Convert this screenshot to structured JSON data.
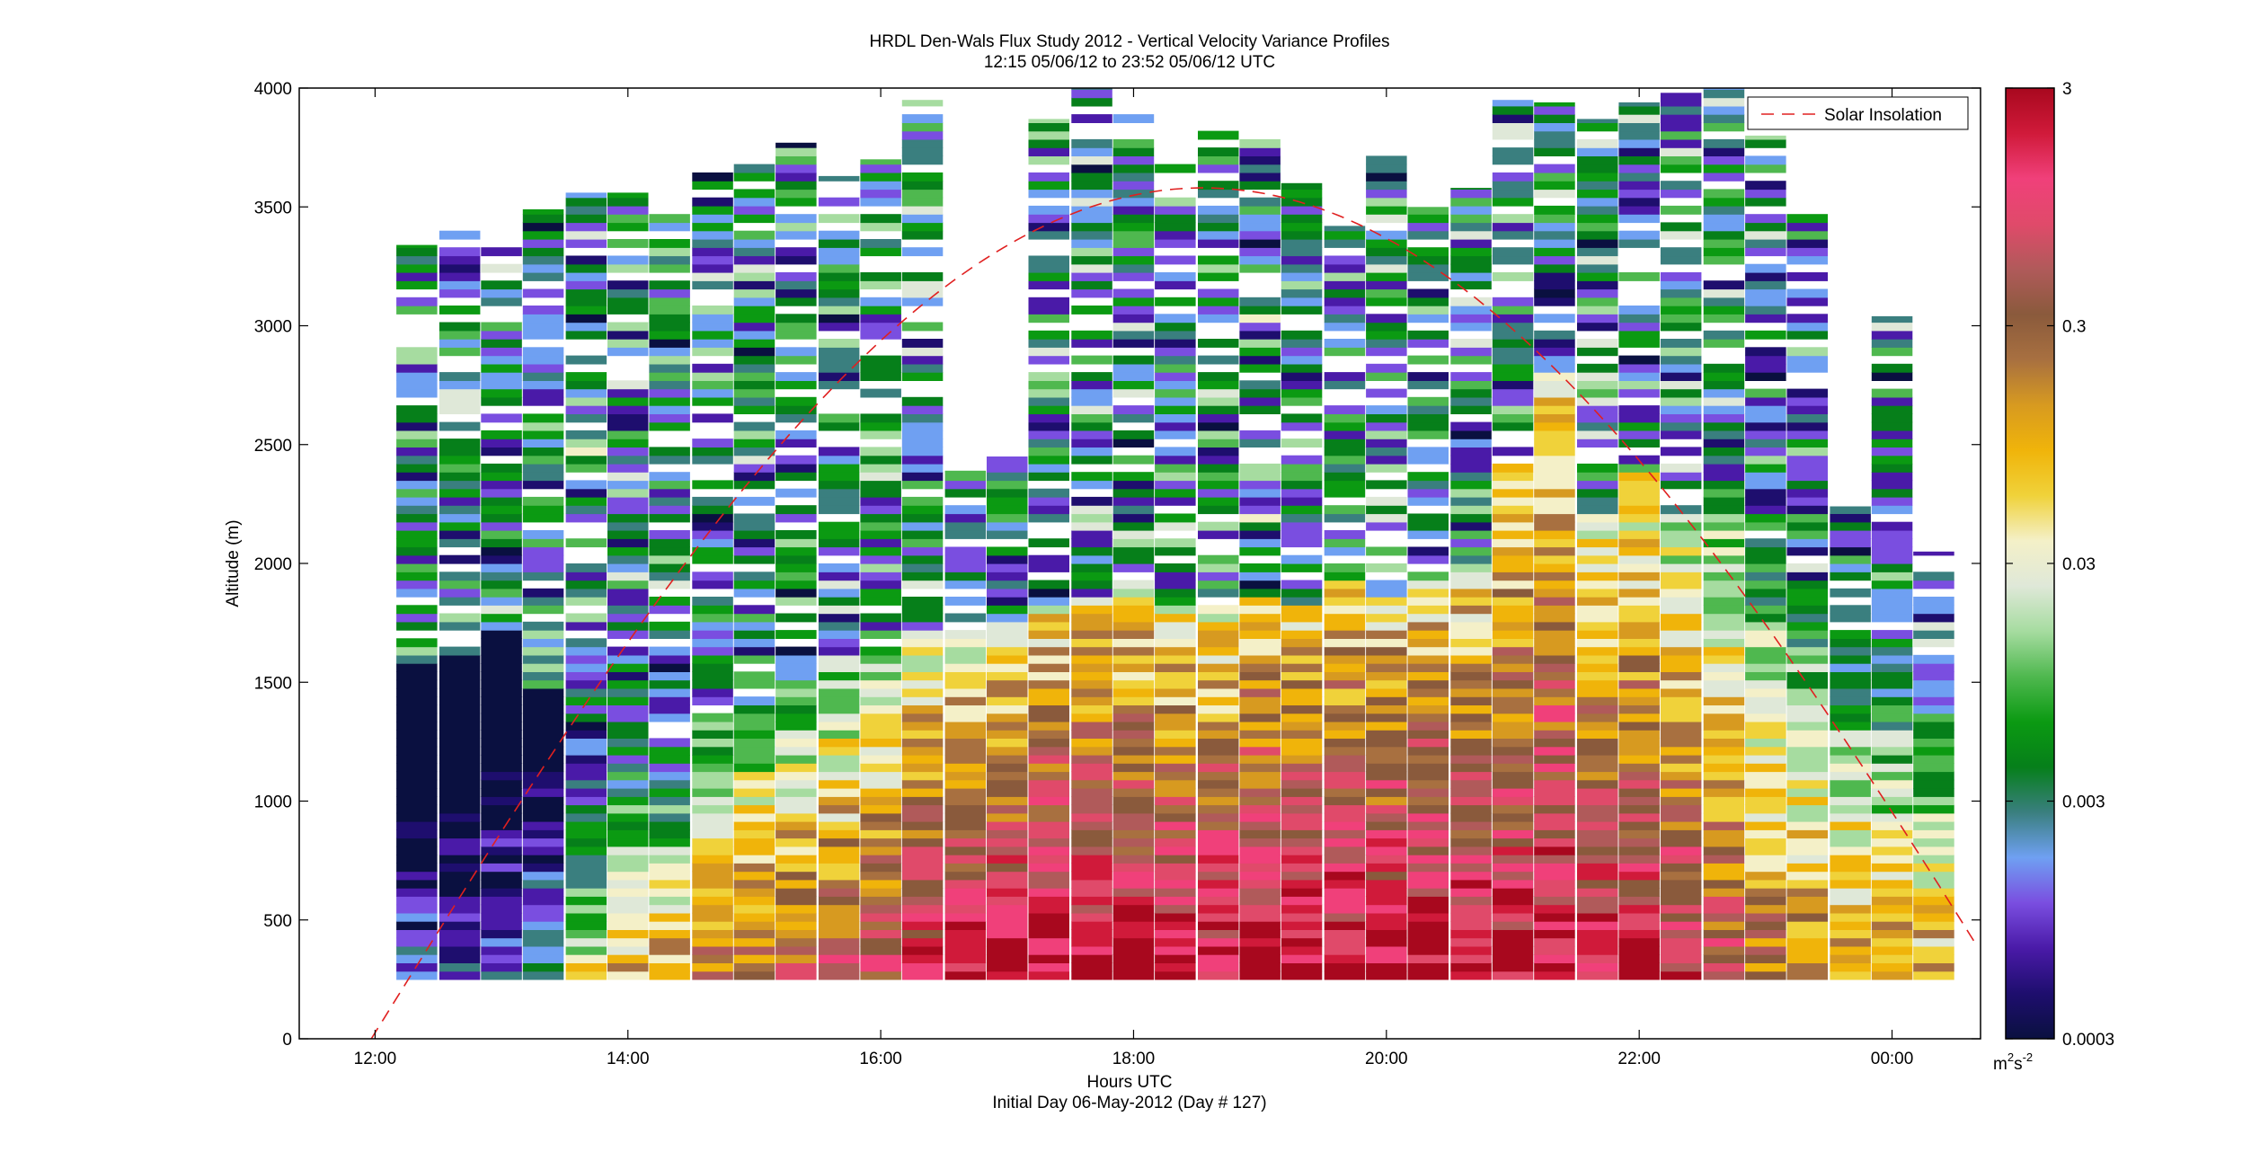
{
  "chart_data": {
    "type": "heatmap",
    "title": "HRDL Den-Wals Flux Study 2012 - Vertical Velocity Variance Profiles",
    "subtitle": "12:15 05/06/12 to 23:52 05/06/12  UTC",
    "xlabel": "Hours UTC",
    "xlabel2": "Initial Day 06-May-2012 (Day # 127)",
    "ylabel": "Altitude (m)",
    "xlim": [
      11.4,
      24.7
    ],
    "ylim": [
      0,
      4000
    ],
    "x_ticks": [
      {
        "value": 12,
        "label": "12:00"
      },
      {
        "value": 14,
        "label": "14:00"
      },
      {
        "value": 16,
        "label": "16:00"
      },
      {
        "value": 18,
        "label": "18:00"
      },
      {
        "value": 20,
        "label": "20:00"
      },
      {
        "value": 22,
        "label": "22:00"
      },
      {
        "value": 24,
        "label": "00:00"
      }
    ],
    "y_ticks": [
      0,
      500,
      1000,
      1500,
      2000,
      2500,
      3000,
      3500,
      4000
    ],
    "colorbar": {
      "scale": "log",
      "min": 0.0003,
      "max": 3,
      "ticks": [
        "3",
        "0.3",
        "0.03",
        "0.003",
        "0.0003"
      ],
      "unit_base": "m",
      "unit_exp1": "2",
      "unit_mid": "s",
      "unit_exp2": "-2",
      "colors": [
        "#0a1040",
        "#1e0e6e",
        "#4a1aa8",
        "#7a4ee0",
        "#6fa0f2",
        "#3a7f7f",
        "#067f1a",
        "#0b9a12",
        "#4fb84f",
        "#a6dca0",
        "#dfe8d8",
        "#f4f0c8",
        "#f0d23a",
        "#f0b40a",
        "#d79a20",
        "#a87040",
        "#8a5a3c",
        "#b05a5a",
        "#e04a6a",
        "#f0407a",
        "#d01a3a",
        "#a8081e"
      ]
    },
    "legend": {
      "label": "Solar Insolation",
      "position": "top-right",
      "color": "#e02020",
      "style": "dashed"
    },
    "solar_curve": {
      "sunrise_hour": 11.97,
      "noon_hour": 18.55,
      "peak_altitude": 3580
    },
    "profiles": [
      {
        "hour": 12.33,
        "top": 3340,
        "mix": 1560,
        "sfc": -2.8
      },
      {
        "hour": 12.67,
        "top": 3400,
        "mix": 1600,
        "sfc": -2.8
      },
      {
        "hour": 13.0,
        "top": 3330,
        "mix": 1700,
        "sfc": -2.7
      },
      {
        "hour": 13.33,
        "top": 3490,
        "mix": 1450,
        "sfc": -2.4
      },
      {
        "hour": 13.67,
        "top": 3560,
        "mix": 1300,
        "sfc": -1.4
      },
      {
        "hour": 14.0,
        "top": 3560,
        "mix": 1350,
        "sfc": -1.1
      },
      {
        "hour": 14.33,
        "top": 3470,
        "mix": 1250,
        "sfc": -0.9
      },
      {
        "hour": 14.67,
        "top": 3670,
        "mix": 1300,
        "sfc": -0.6
      },
      {
        "hour": 15.0,
        "top": 3680,
        "mix": 1400,
        "sfc": -0.5
      },
      {
        "hour": 15.33,
        "top": 3770,
        "mix": 1500,
        "sfc": -0.4
      },
      {
        "hour": 15.67,
        "top": 3630,
        "mix": 1600,
        "sfc": -0.3
      },
      {
        "hour": 16.0,
        "top": 3700,
        "mix": 1600,
        "sfc": -0.2
      },
      {
        "hour": 16.33,
        "top": 3950,
        "mix": 1700,
        "sfc": 0.1
      },
      {
        "hour": 16.67,
        "top": 2390,
        "mix": 1700,
        "sfc": 0.2
      },
      {
        "hour": 17.0,
        "top": 2450,
        "mix": 1750,
        "sfc": 0.3
      },
      {
        "hour": 17.33,
        "top": 3870,
        "mix": 1800,
        "sfc": 0.4
      },
      {
        "hour": 17.67,
        "top": 4000,
        "mix": 1850,
        "sfc": 0.4
      },
      {
        "hour": 18.0,
        "top": 3890,
        "mix": 1900,
        "sfc": 0.3
      },
      {
        "hour": 18.33,
        "top": 3760,
        "mix": 1800,
        "sfc": 0.3
      },
      {
        "hour": 18.67,
        "top": 3880,
        "mix": 1800,
        "sfc": 0.3
      },
      {
        "hour": 19.0,
        "top": 3800,
        "mix": 1850,
        "sfc": 0.4
      },
      {
        "hour": 19.33,
        "top": 3600,
        "mix": 1800,
        "sfc": 0.4
      },
      {
        "hour": 19.67,
        "top": 3420,
        "mix": 1900,
        "sfc": 0.4
      },
      {
        "hour": 20.0,
        "top": 3730,
        "mix": 1850,
        "sfc": 0.4
      },
      {
        "hour": 20.33,
        "top": 3500,
        "mix": 1900,
        "sfc": 0.4
      },
      {
        "hour": 20.67,
        "top": 3580,
        "mix": 2000,
        "sfc": 0.3
      },
      {
        "hour": 21.0,
        "top": 3950,
        "mix": 2400,
        "sfc": 0.3
      },
      {
        "hour": 21.33,
        "top": 3940,
        "mix": 2800,
        "sfc": 0.3
      },
      {
        "hour": 21.67,
        "top": 3870,
        "mix": 2200,
        "sfc": 0.2
      },
      {
        "hour": 22.0,
        "top": 3940,
        "mix": 2400,
        "sfc": 0.1
      },
      {
        "hour": 22.33,
        "top": 3980,
        "mix": 2200,
        "sfc": 0.0
      },
      {
        "hour": 22.67,
        "top": 4000,
        "mix": 2300,
        "sfc": -0.3
      },
      {
        "hour": 23.0,
        "top": 3800,
        "mix": 2100,
        "sfc": -0.6
      },
      {
        "hour": 23.33,
        "top": 3490,
        "mix": 1900,
        "sfc": -0.7
      },
      {
        "hour": 23.67,
        "top": 2240,
        "mix": 1700,
        "sfc": -0.8
      },
      {
        "hour": 24.0,
        "top": 3040,
        "mix": 1700,
        "sfc": -0.9
      },
      {
        "hour": 24.33,
        "top": 2050,
        "mix": 1600,
        "sfc": -1.0
      }
    ],
    "profile_base_altitude": 250,
    "gate_height_m": 35
  }
}
